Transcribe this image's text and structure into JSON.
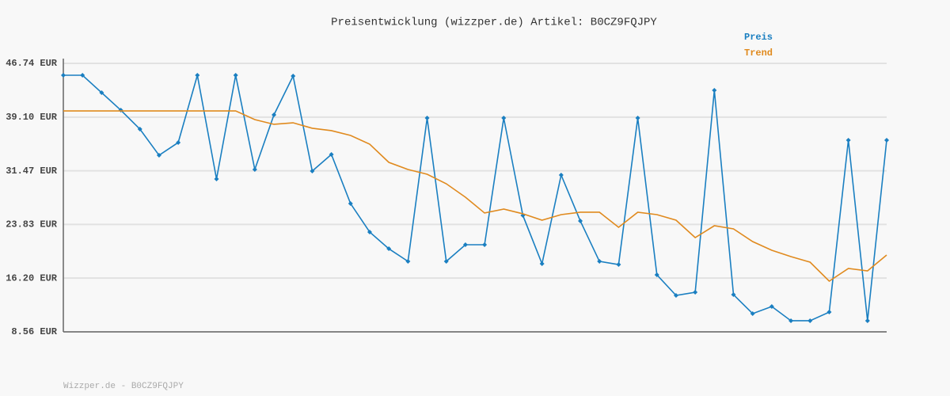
{
  "chart_data": {
    "type": "line",
    "title": "Preisentwicklung (wizzper.de) Artikel: B0CZ9FQJPY",
    "footer": "Wizzper.de - B0CZ9FQJPY",
    "categories": [
      null,
      null,
      null,
      null,
      null,
      null,
      null,
      null,
      null,
      null,
      null,
      null,
      null,
      null,
      null,
      null,
      null,
      null,
      null,
      null,
      null,
      null,
      null,
      null,
      null,
      null,
      null,
      null,
      null,
      null,
      null,
      null,
      null,
      null,
      null,
      null,
      null,
      null,
      null,
      null,
      null,
      null,
      null,
      null
    ],
    "series": [
      {
        "name": "Preis",
        "color": "#1a7fc1",
        "markers": true,
        "values": [
          45.05,
          45.05,
          42.57,
          40.09,
          37.39,
          33.67,
          35.48,
          45.05,
          30.3,
          45.05,
          31.65,
          39.42,
          44.94,
          31.42,
          33.79,
          26.8,
          22.75,
          20.38,
          18.58,
          38.97,
          18.58,
          20.95,
          20.95,
          38.97,
          25.12,
          18.24,
          30.86,
          24.33,
          18.58,
          18.13,
          38.97,
          16.67,
          13.74,
          14.19,
          42.91,
          13.85,
          11.15,
          12.16,
          10.14,
          10.14,
          11.37,
          35.82,
          10.14,
          35.82
        ]
      },
      {
        "name": "Trend",
        "color": "#e08a1e",
        "markers": false,
        "values": [
          39.98,
          39.98,
          39.98,
          39.98,
          39.98,
          39.98,
          39.98,
          39.98,
          39.98,
          39.98,
          38.74,
          38.07,
          38.29,
          37.51,
          37.17,
          36.49,
          35.25,
          32.66,
          31.65,
          30.97,
          29.62,
          27.71,
          25.46,
          26.02,
          25.35,
          24.44,
          25.23,
          25.57,
          25.57,
          23.43,
          25.57,
          25.23,
          24.44,
          21.96,
          23.65,
          23.2,
          21.4,
          20.16,
          19.26,
          18.47,
          15.77,
          17.57,
          17.23,
          19.48
        ]
      }
    ],
    "ylim": [
      8.56,
      46.74
    ],
    "yticks": [
      {
        "value": 46.74,
        "label": "46.74 EUR"
      },
      {
        "value": 39.1,
        "label": "39.10 EUR"
      },
      {
        "value": 31.47,
        "label": "31.47 EUR"
      },
      {
        "value": 23.83,
        "label": "23.83 EUR"
      },
      {
        "value": 16.2,
        "label": "16.20 EUR"
      },
      {
        "value": 8.56,
        "label": "8.56 EUR"
      }
    ],
    "grid": true,
    "legend": "top-right"
  }
}
